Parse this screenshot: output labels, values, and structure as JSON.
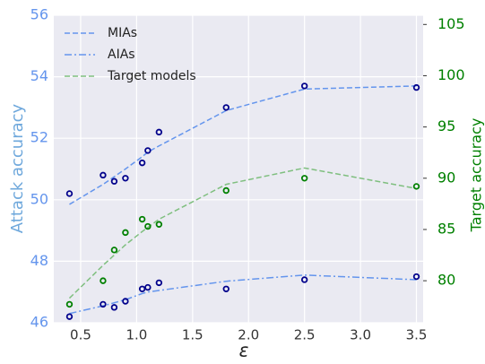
{
  "chart_data": {
    "type": "line",
    "xlabel": "ε",
    "ylabel": "Attack accuracy",
    "y2label": "Target accuracy",
    "x": [
      0.4,
      0.7,
      0.8,
      0.9,
      1.05,
      1.1,
      1.2,
      1.8,
      2.5,
      3.5
    ],
    "xlim": [
      0.26,
      3.56
    ],
    "xticks": [
      0.5,
      {
        "value": 1.0,
        "label": "1.0"
      },
      1.5,
      {
        "value": 2.0,
        "label": "2.0"
      },
      2.5,
      {
        "value": 3.0,
        "label": "3.0"
      },
      3.5
    ],
    "ylim": [
      46,
      56
    ],
    "yticks": [
      46,
      48,
      50,
      52,
      54,
      56
    ],
    "y2lim": [
      75.9,
      105.9
    ],
    "y2ticks": [
      80,
      85,
      90,
      95,
      100,
      105
    ],
    "grid": true,
    "legend": "upper left",
    "series": [
      {
        "name": "MIAs",
        "color": "#6495ed",
        "dash": "dashed",
        "values": [
          49.85,
          50.5,
          50.75,
          51.0,
          51.4,
          51.55,
          51.75,
          52.9,
          53.6,
          53.7
        ]
      },
      {
        "name": "AIAs",
        "color": "#6495ed",
        "dash": "dashdot",
        "values": [
          46.3,
          46.55,
          46.65,
          46.75,
          46.95,
          47.0,
          47.05,
          47.35,
          47.55,
          47.4
        ]
      },
      {
        "name": "Target models",
        "color": "#7fbf7f",
        "dash": "dashed",
        "axis": "y2",
        "values": [
          78.3,
          81.5,
          82.5,
          83.5,
          84.8,
          85.2,
          86.0,
          89.4,
          91.0,
          89.0
        ]
      }
    ],
    "points": [
      {
        "color": "#00008b",
        "values": [
          50.2,
          50.8,
          50.6,
          50.7,
          51.2,
          51.6,
          52.2,
          53.0,
          53.7,
          53.65
        ]
      },
      {
        "color": "#00008b",
        "values": [
          46.2,
          46.6,
          46.5,
          46.7,
          47.1,
          47.15,
          47.3,
          47.1,
          47.4,
          47.5
        ]
      },
      {
        "color": "#008000",
        "axis": "y2",
        "values": [
          77.7,
          80.0,
          83.0,
          84.7,
          86.0,
          85.3,
          85.5,
          88.8,
          90.0,
          89.2
        ]
      }
    ]
  }
}
